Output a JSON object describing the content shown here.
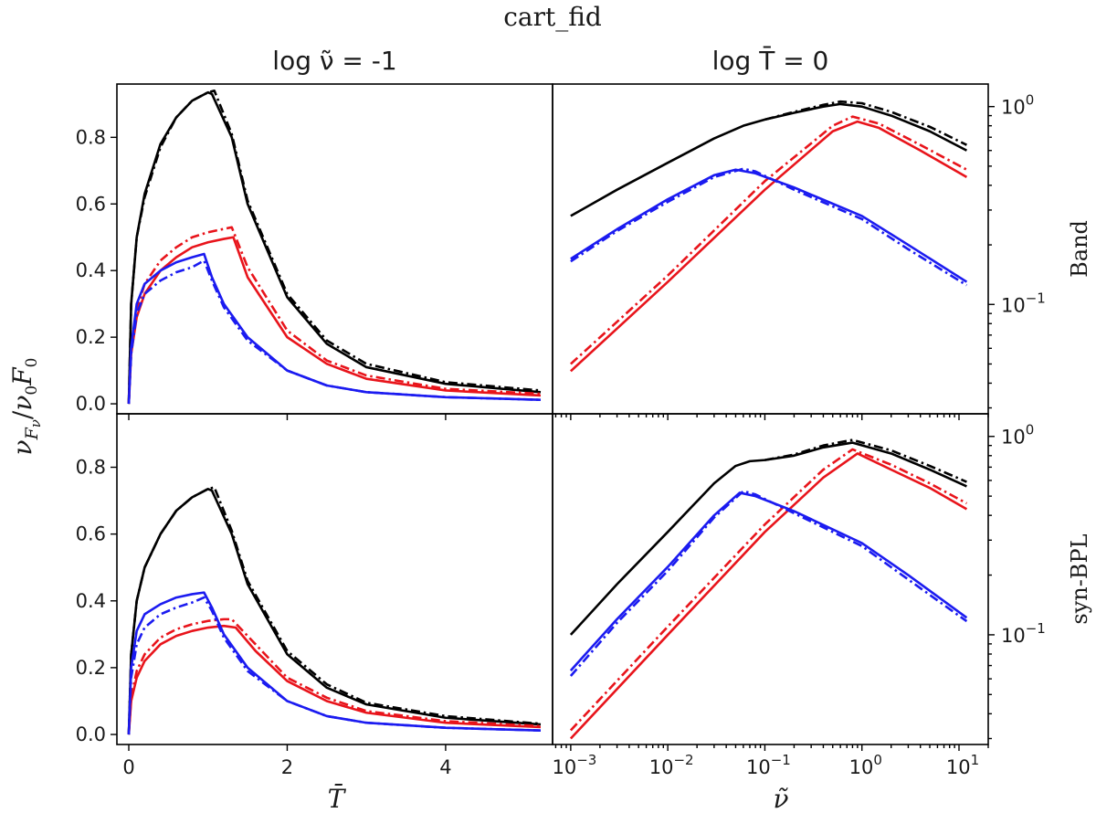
{
  "figure_title": "cart_fid",
  "ylabel_left": "νFν/ν0F0",
  "xlabel_left": "T̄",
  "xlabel_right": "ν̃",
  "colors": {
    "black": "#000000",
    "red": "#e8141b",
    "blue": "#1b1bf0"
  },
  "chart_data": [
    {
      "panel": "top-left",
      "type": "line",
      "title": "log ν̃ = -1",
      "xscale": "linear",
      "yscale": "linear",
      "xlim": [
        -0.15,
        5.35
      ],
      "ylim": [
        -0.03,
        0.96
      ],
      "xticks": [
        0,
        2,
        4
      ],
      "xtick_labels": [
        "0",
        "2",
        "4"
      ],
      "yticks": [
        0.0,
        0.2,
        0.4,
        0.6,
        0.8
      ],
      "ytick_labels": [
        "0.0",
        "0.2",
        "0.4",
        "0.6",
        "0.8"
      ],
      "show_xticklabels": false,
      "series": [
        {
          "color": "black",
          "style": "solid",
          "x": [
            0,
            0.03,
            0.1,
            0.2,
            0.4,
            0.6,
            0.8,
            1.0,
            1.05,
            1.3,
            1.5,
            2.0,
            2.5,
            3.0,
            4.0,
            5.2
          ],
          "y": [
            0,
            0.3,
            0.5,
            0.63,
            0.78,
            0.86,
            0.91,
            0.935,
            0.93,
            0.8,
            0.6,
            0.32,
            0.18,
            0.11,
            0.06,
            0.035
          ]
        },
        {
          "color": "black",
          "style": "dashdot",
          "x": [
            0,
            0.03,
            0.1,
            0.2,
            0.4,
            0.6,
            0.8,
            1.0,
            1.08,
            1.3,
            1.5,
            2.0,
            2.5,
            3.0,
            4.0,
            5.2
          ],
          "y": [
            0,
            0.3,
            0.5,
            0.62,
            0.77,
            0.86,
            0.91,
            0.935,
            0.94,
            0.81,
            0.61,
            0.33,
            0.19,
            0.12,
            0.065,
            0.04
          ]
        },
        {
          "color": "red",
          "style": "solid",
          "x": [
            0,
            0.03,
            0.1,
            0.2,
            0.4,
            0.6,
            0.8,
            1.0,
            1.2,
            1.32,
            1.5,
            2.0,
            2.5,
            3.0,
            4.0,
            5.2
          ],
          "y": [
            0,
            0.15,
            0.26,
            0.33,
            0.4,
            0.44,
            0.47,
            0.485,
            0.495,
            0.5,
            0.38,
            0.2,
            0.12,
            0.075,
            0.04,
            0.025
          ]
        },
        {
          "color": "red",
          "style": "dashdot",
          "x": [
            0,
            0.03,
            0.1,
            0.2,
            0.4,
            0.6,
            0.8,
            1.0,
            1.2,
            1.3,
            1.5,
            2.0,
            2.5,
            3.0,
            4.0,
            5.2
          ],
          "y": [
            0,
            0.16,
            0.28,
            0.36,
            0.43,
            0.47,
            0.5,
            0.515,
            0.525,
            0.53,
            0.41,
            0.22,
            0.13,
            0.085,
            0.045,
            0.03
          ]
        },
        {
          "color": "blue",
          "style": "solid",
          "x": [
            0,
            0.03,
            0.1,
            0.2,
            0.4,
            0.6,
            0.8,
            0.95,
            1.05,
            1.2,
            1.5,
            2.0,
            2.5,
            3.0,
            4.0,
            5.2
          ],
          "y": [
            0,
            0.17,
            0.3,
            0.36,
            0.4,
            0.425,
            0.44,
            0.45,
            0.38,
            0.3,
            0.2,
            0.1,
            0.055,
            0.035,
            0.02,
            0.012
          ]
        },
        {
          "color": "blue",
          "style": "dashdot",
          "x": [
            0,
            0.03,
            0.1,
            0.2,
            0.4,
            0.6,
            0.8,
            0.95,
            1.05,
            1.2,
            1.5,
            2.0,
            2.5,
            3.0,
            4.0,
            5.2
          ],
          "y": [
            0,
            0.15,
            0.27,
            0.33,
            0.37,
            0.395,
            0.41,
            0.43,
            0.37,
            0.29,
            0.19,
            0.1,
            0.055,
            0.035,
            0.02,
            0.012
          ]
        }
      ]
    },
    {
      "panel": "top-right",
      "type": "line",
      "title": "log T̄ = 0",
      "row_label": "Band",
      "xscale": "log",
      "yscale": "log",
      "xlim": [
        0.00065,
        20
      ],
      "ylim": [
        0.028,
        1.3
      ],
      "xticks": [
        0.001,
        0.01,
        0.1,
        1,
        10
      ],
      "yticks": [
        0.1,
        1
      ],
      "ytick_labels": [
        "10^-1",
        "10^0"
      ],
      "show_xticklabels": false,
      "series": [
        {
          "color": "black",
          "style": "solid",
          "x": [
            0.001,
            0.003,
            0.01,
            0.03,
            0.06,
            0.1,
            0.2,
            0.4,
            0.6,
            1.0,
            2,
            5,
            12
          ],
          "y": [
            0.28,
            0.38,
            0.52,
            0.69,
            0.8,
            0.86,
            0.93,
            1.0,
            1.03,
            1.0,
            0.9,
            0.75,
            0.6
          ]
        },
        {
          "color": "black",
          "style": "dashdot",
          "x": [
            0.1,
            0.2,
            0.4,
            0.6,
            1.0,
            2,
            5,
            12
          ],
          "y": [
            0.86,
            0.94,
            1.02,
            1.06,
            1.04,
            0.94,
            0.79,
            0.64
          ]
        },
        {
          "color": "red",
          "style": "solid",
          "x": [
            0.001,
            0.01,
            0.1,
            0.5,
            0.9,
            1.5,
            4,
            12
          ],
          "y": [
            0.046,
            0.13,
            0.38,
            0.75,
            0.84,
            0.78,
            0.6,
            0.44
          ]
        },
        {
          "color": "red",
          "style": "dashdot",
          "x": [
            0.001,
            0.01,
            0.1,
            0.5,
            0.8,
            1.5,
            4,
            12
          ],
          "y": [
            0.05,
            0.14,
            0.42,
            0.8,
            0.89,
            0.82,
            0.64,
            0.48
          ]
        },
        {
          "color": "blue",
          "style": "solid",
          "x": [
            0.001,
            0.003,
            0.01,
            0.03,
            0.05,
            0.08,
            0.2,
            1.0,
            3,
            12
          ],
          "y": [
            0.17,
            0.24,
            0.34,
            0.45,
            0.48,
            0.46,
            0.39,
            0.28,
            0.2,
            0.13
          ]
        },
        {
          "color": "blue",
          "style": "dashdot",
          "x": [
            0.001,
            0.003,
            0.01,
            0.03,
            0.06,
            0.08,
            0.2,
            1.0,
            3,
            12
          ],
          "y": [
            0.165,
            0.235,
            0.33,
            0.44,
            0.485,
            0.47,
            0.38,
            0.27,
            0.19,
            0.125
          ]
        }
      ]
    },
    {
      "panel": "bottom-left",
      "type": "line",
      "xscale": "linear",
      "yscale": "linear",
      "xlim": [
        -0.15,
        5.35
      ],
      "ylim": [
        -0.03,
        0.96
      ],
      "xticks": [
        0,
        2,
        4
      ],
      "xtick_labels": [
        "0",
        "2",
        "4"
      ],
      "yticks": [
        0.0,
        0.2,
        0.4,
        0.6,
        0.8
      ],
      "ytick_labels": [
        "0.0",
        "0.2",
        "0.4",
        "0.6",
        "0.8"
      ],
      "show_xticklabels": true,
      "series": [
        {
          "color": "black",
          "style": "solid",
          "x": [
            0,
            0.03,
            0.1,
            0.2,
            0.4,
            0.6,
            0.8,
            1.0,
            1.05,
            1.3,
            1.5,
            2.0,
            2.5,
            3.0,
            4.0,
            5.2
          ],
          "y": [
            0,
            0.24,
            0.4,
            0.5,
            0.6,
            0.67,
            0.71,
            0.735,
            0.73,
            0.6,
            0.45,
            0.24,
            0.14,
            0.09,
            0.05,
            0.03
          ]
        },
        {
          "color": "black",
          "style": "dashdot",
          "x": [
            0,
            0.03,
            0.1,
            0.2,
            0.4,
            0.6,
            0.8,
            1.0,
            1.08,
            1.3,
            1.5,
            2.0,
            2.5,
            3.0,
            4.0,
            5.2
          ],
          "y": [
            0,
            0.24,
            0.4,
            0.5,
            0.6,
            0.67,
            0.71,
            0.735,
            0.74,
            0.61,
            0.46,
            0.25,
            0.15,
            0.095,
            0.055,
            0.032
          ]
        },
        {
          "color": "red",
          "style": "solid",
          "x": [
            0,
            0.03,
            0.1,
            0.2,
            0.4,
            0.6,
            0.8,
            1.0,
            1.2,
            1.35,
            1.6,
            2.0,
            2.5,
            3.0,
            4.0,
            5.2
          ],
          "y": [
            0,
            0.1,
            0.17,
            0.22,
            0.27,
            0.295,
            0.31,
            0.32,
            0.325,
            0.32,
            0.25,
            0.16,
            0.1,
            0.065,
            0.035,
            0.022
          ]
        },
        {
          "color": "red",
          "style": "dashdot",
          "x": [
            0,
            0.03,
            0.1,
            0.2,
            0.4,
            0.6,
            0.8,
            1.0,
            1.2,
            1.3,
            1.6,
            2.0,
            2.5,
            3.0,
            4.0,
            5.2
          ],
          "y": [
            0,
            0.11,
            0.19,
            0.24,
            0.29,
            0.315,
            0.33,
            0.34,
            0.345,
            0.345,
            0.27,
            0.17,
            0.11,
            0.07,
            0.04,
            0.025
          ]
        },
        {
          "color": "blue",
          "style": "solid",
          "x": [
            0,
            0.03,
            0.1,
            0.2,
            0.4,
            0.6,
            0.8,
            0.95,
            1.05,
            1.2,
            1.5,
            2.0,
            2.5,
            3.0,
            4.0,
            5.2
          ],
          "y": [
            0,
            0.2,
            0.31,
            0.36,
            0.39,
            0.41,
            0.42,
            0.425,
            0.38,
            0.3,
            0.2,
            0.1,
            0.055,
            0.035,
            0.02,
            0.012
          ]
        },
        {
          "color": "blue",
          "style": "dashdot",
          "x": [
            0,
            0.03,
            0.1,
            0.2,
            0.4,
            0.6,
            0.8,
            0.95,
            1.05,
            1.2,
            1.5,
            2.0,
            2.5,
            3.0,
            4.0,
            5.2
          ],
          "y": [
            0,
            0.17,
            0.27,
            0.32,
            0.36,
            0.38,
            0.395,
            0.41,
            0.37,
            0.29,
            0.19,
            0.1,
            0.055,
            0.035,
            0.02,
            0.012
          ]
        }
      ]
    },
    {
      "panel": "bottom-right",
      "type": "line",
      "row_label": "syn-BPL",
      "xscale": "log",
      "yscale": "log",
      "xlim": [
        0.00065,
        20
      ],
      "ylim": [
        0.028,
        1.3
      ],
      "xticks": [
        0.001,
        0.01,
        0.1,
        1,
        10
      ],
      "xtick_labels": [
        "10^-3",
        "10^-2",
        "10^-1",
        "10^0",
        "10^1"
      ],
      "yticks": [
        0.1,
        1
      ],
      "ytick_labels": [
        "10^-1",
        "10^0"
      ],
      "show_xticklabels": true,
      "series": [
        {
          "color": "black",
          "style": "solid",
          "x": [
            0.001,
            0.003,
            0.01,
            0.03,
            0.05,
            0.07,
            0.1,
            0.2,
            0.4,
            0.8,
            2,
            5,
            12
          ],
          "y": [
            0.1,
            0.18,
            0.33,
            0.58,
            0.71,
            0.75,
            0.76,
            0.8,
            0.88,
            0.93,
            0.82,
            0.68,
            0.56
          ]
        },
        {
          "color": "black",
          "style": "dashdot",
          "x": [
            0.1,
            0.2,
            0.4,
            0.8,
            2,
            5,
            12
          ],
          "y": [
            0.76,
            0.81,
            0.9,
            0.96,
            0.85,
            0.71,
            0.59
          ]
        },
        {
          "color": "red",
          "style": "solid",
          "x": [
            0.001,
            0.01,
            0.1,
            0.4,
            0.9,
            2,
            5,
            12
          ],
          "y": [
            0.03,
            0.1,
            0.33,
            0.62,
            0.82,
            0.68,
            0.55,
            0.43
          ]
        },
        {
          "color": "red",
          "style": "dashdot",
          "x": [
            0.001,
            0.01,
            0.1,
            0.4,
            0.8,
            2,
            5,
            12
          ],
          "y": [
            0.033,
            0.11,
            0.36,
            0.68,
            0.86,
            0.72,
            0.58,
            0.46
          ]
        },
        {
          "color": "blue",
          "style": "solid",
          "x": [
            0.001,
            0.003,
            0.01,
            0.03,
            0.055,
            0.08,
            0.2,
            1.0,
            3,
            12
          ],
          "y": [
            0.066,
            0.12,
            0.22,
            0.4,
            0.52,
            0.5,
            0.42,
            0.29,
            0.2,
            0.122
          ]
        },
        {
          "color": "blue",
          "style": "dashdot",
          "x": [
            0.001,
            0.003,
            0.01,
            0.03,
            0.06,
            0.08,
            0.2,
            1.0,
            3,
            12
          ],
          "y": [
            0.062,
            0.115,
            0.21,
            0.39,
            0.53,
            0.51,
            0.41,
            0.28,
            0.19,
            0.117
          ]
        }
      ]
    }
  ]
}
